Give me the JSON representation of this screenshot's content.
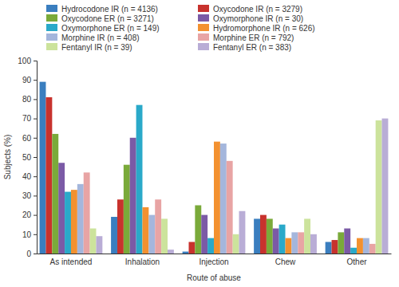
{
  "chart_data": {
    "type": "bar",
    "x_label": "Route of abuse",
    "y_label": "Subjects (%)",
    "categories": [
      "As intended",
      "Inhalation",
      "Injection",
      "Chew",
      "Other"
    ],
    "series": [
      {
        "name": "Hydrocodone IR (n = 4136)",
        "color": "#3a7ebf",
        "values": [
          89,
          19,
          1,
          18,
          6
        ]
      },
      {
        "name": "Oxycodone IR (n = 3279)",
        "color": "#c8322d",
        "values": [
          81,
          28,
          6,
          20,
          7
        ]
      },
      {
        "name": "Oxycodone ER (n = 3271)",
        "color": "#7aaa3a",
        "values": [
          62,
          46,
          25,
          18,
          11
        ]
      },
      {
        "name": "Oxymorphone IR (n = 30)",
        "color": "#7b5aa6",
        "values": [
          47,
          60,
          20,
          13,
          13
        ]
      },
      {
        "name": "Oxymorphone ER (n = 149)",
        "color": "#2aa9c9",
        "values": [
          32,
          77,
          8,
          15,
          3
        ]
      },
      {
        "name": "Hydromorphone IR (n = 626)",
        "color": "#f39130",
        "values": [
          33,
          24,
          58,
          8,
          8
        ]
      },
      {
        "name": "Morphine IR (n = 408)",
        "color": "#a4b6dc",
        "values": [
          36,
          20,
          57,
          11,
          8
        ]
      },
      {
        "name": "Morphine ER (n = 792)",
        "color": "#e8a4a4",
        "values": [
          42,
          28,
          48,
          11,
          5
        ]
      },
      {
        "name": "Fentanyl IR (n = 39)",
        "color": "#cce39c",
        "values": [
          13,
          18,
          10,
          18,
          69
        ]
      },
      {
        "name": "Fentanyl ER (n = 383)",
        "color": "#b9add6",
        "values": [
          9,
          2,
          22,
          10,
          70
        ]
      }
    ],
    "ylim": [
      0,
      100
    ],
    "yticks": [
      0,
      10,
      20,
      30,
      40,
      50,
      60,
      70,
      80,
      90,
      100
    ],
    "grid": false,
    "legend": "top-left"
  }
}
